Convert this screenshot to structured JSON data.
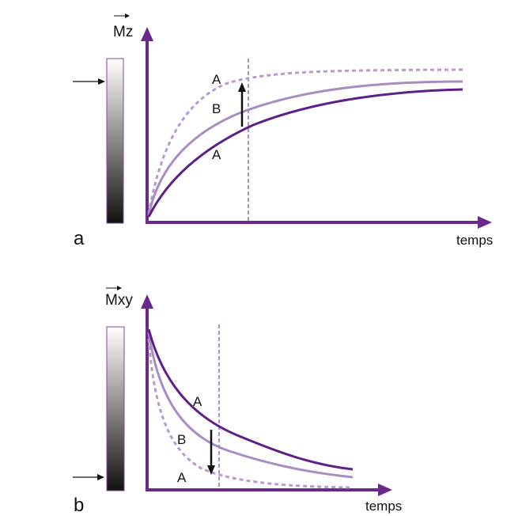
{
  "colors": {
    "axis": "#6a2a8c",
    "curve_dark": "#5e1f86",
    "curve_light": "#a88cc3",
    "curve_dotted": "#b89ad0",
    "arrow": "#111111"
  },
  "panel_a": {
    "panel_label": "a",
    "y_label": "Mz",
    "x_label": "temps",
    "curve_labels": {
      "top": "A",
      "middle": "B",
      "bottom": "A"
    }
  },
  "panel_b": {
    "panel_label": "b",
    "y_label": "Mxy",
    "x_label": "temps",
    "curve_labels": {
      "top": "A",
      "middle": "B",
      "bottom": "A"
    }
  }
}
